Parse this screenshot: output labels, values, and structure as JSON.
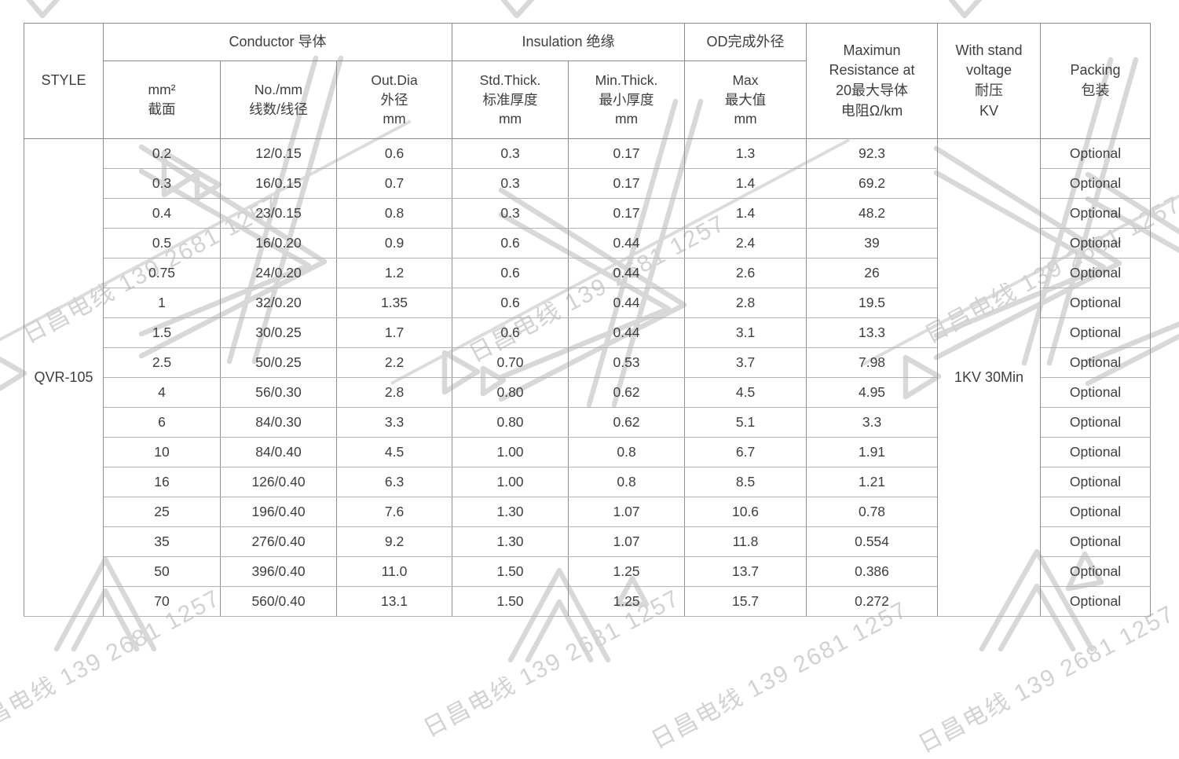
{
  "watermark": {
    "text": "日昌电线 139 2681 1257",
    "color": "#d2d2d2"
  },
  "colors": {
    "table_border": "#8c8c8c",
    "row_line": "#b2b2b2",
    "text": "#3e3e3e",
    "watermark": "#d2d2d2"
  },
  "table": {
    "style_label": "STYLE",
    "style_value": "QVR-105",
    "withstand_value": "1KV 30Min",
    "groups": {
      "conductor": "Conductor 导体",
      "insulation": "Insulation 绝缘",
      "od": "OD完成外径"
    },
    "columns": {
      "mm2": "mm²\n截面",
      "strands": "No./mm\n线数/线径",
      "out_dia": "Out.Dia\n外径\nmm",
      "std_thick": "Std.Thick.\n标准厚度\nmm",
      "min_thick": "Min.Thick.\n最小厚度\nmm",
      "od_max": "Max\n最大值\nmm",
      "resistance": "Maximun\nResistance at\n20最大导体\n电阻Ω/km",
      "withstand": "With stand\nvoltage\n耐压\nKV",
      "packing": "Packing\n包装"
    },
    "rows": [
      {
        "mm2": "0.2",
        "strands": "12/0.15",
        "out_dia": "0.6",
        "std_thick": "0.3",
        "min_thick": "0.17",
        "od_max": "1.3",
        "resistance": "92.3",
        "packing": "Optional"
      },
      {
        "mm2": "0.3",
        "strands": "16/0.15",
        "out_dia": "0.7",
        "std_thick": "0.3",
        "min_thick": "0.17",
        "od_max": "1.4",
        "resistance": "69.2",
        "packing": "Optional"
      },
      {
        "mm2": "0.4",
        "strands": "23/0.15",
        "out_dia": "0.8",
        "std_thick": "0.3",
        "min_thick": "0.17",
        "od_max": "1.4",
        "resistance": "48.2",
        "packing": "Optional"
      },
      {
        "mm2": "0.5",
        "strands": "16/0.20",
        "out_dia": "0.9",
        "std_thick": "0.6",
        "min_thick": "0.44",
        "od_max": "2.4",
        "resistance": "39",
        "packing": "Optional"
      },
      {
        "mm2": "0.75",
        "strands": "24/0.20",
        "out_dia": "1.2",
        "std_thick": "0.6",
        "min_thick": "0.44",
        "od_max": "2.6",
        "resistance": "26",
        "packing": "Optional"
      },
      {
        "mm2": "1",
        "strands": "32/0.20",
        "out_dia": "1.35",
        "std_thick": "0.6",
        "min_thick": "0.44",
        "od_max": "2.8",
        "resistance": "19.5",
        "packing": "Optional"
      },
      {
        "mm2": "1.5",
        "strands": "30/0.25",
        "out_dia": "1.7",
        "std_thick": "0.6",
        "min_thick": "0.44",
        "od_max": "3.1",
        "resistance": "13.3",
        "packing": "Optional"
      },
      {
        "mm2": "2.5",
        "strands": "50/0.25",
        "out_dia": "2.2",
        "std_thick": "0.70",
        "min_thick": "0.53",
        "od_max": "3.7",
        "resistance": "7.98",
        "packing": "Optional"
      },
      {
        "mm2": "4",
        "strands": "56/0.30",
        "out_dia": "2.8",
        "std_thick": "0.80",
        "min_thick": "0.62",
        "od_max": "4.5",
        "resistance": "4.95",
        "packing": "Optional"
      },
      {
        "mm2": "6",
        "strands": "84/0.30",
        "out_dia": "3.3",
        "std_thick": "0.80",
        "min_thick": "0.62",
        "od_max": "5.1",
        "resistance": "3.3",
        "packing": "Optional"
      },
      {
        "mm2": "10",
        "strands": "84/0.40",
        "out_dia": "4.5",
        "std_thick": "1.00",
        "min_thick": "0.8",
        "od_max": "6.7",
        "resistance": "1.91",
        "packing": "Optional"
      },
      {
        "mm2": "16",
        "strands": "126/0.40",
        "out_dia": "6.3",
        "std_thick": "1.00",
        "min_thick": "0.8",
        "od_max": "8.5",
        "resistance": "1.21",
        "packing": "Optional"
      },
      {
        "mm2": "25",
        "strands": "196/0.40",
        "out_dia": "7.6",
        "std_thick": "1.30",
        "min_thick": "1.07",
        "od_max": "10.6",
        "resistance": "0.78",
        "packing": "Optional"
      },
      {
        "mm2": "35",
        "strands": "276/0.40",
        "out_dia": "9.2",
        "std_thick": "1.30",
        "min_thick": "1.07",
        "od_max": "11.8",
        "resistance": "0.554",
        "packing": "Optional"
      },
      {
        "mm2": "50",
        "strands": "396/0.40",
        "out_dia": "11.0",
        "std_thick": "1.50",
        "min_thick": "1.25",
        "od_max": "13.7",
        "resistance": "0.386",
        "packing": "Optional"
      },
      {
        "mm2": "70",
        "strands": "560/0.40",
        "out_dia": "13.1",
        "std_thick": "1.50",
        "min_thick": "1.25",
        "od_max": "15.7",
        "resistance": "0.272",
        "packing": "Optional"
      }
    ]
  }
}
